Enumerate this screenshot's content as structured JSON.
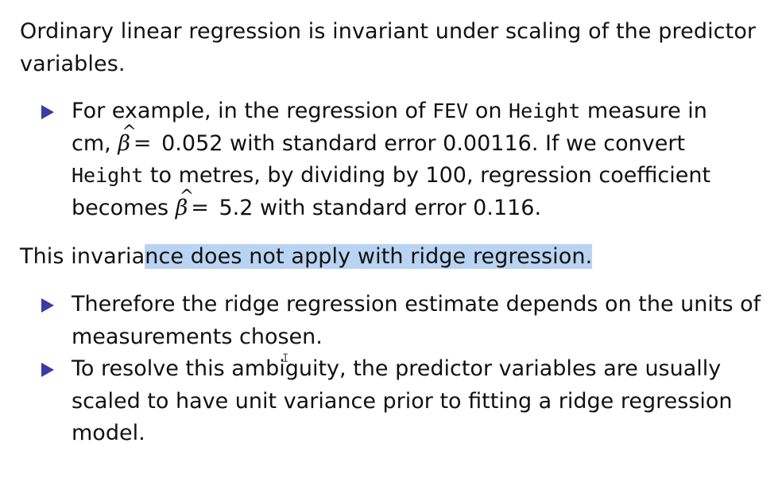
{
  "intro": {
    "line1": "Ordinary linear regression is invariant under scaling of the predictor",
    "line2": "variables."
  },
  "bullet1": {
    "l1_a": "For example, in the regression of ",
    "l1_code1": "FEV",
    "l1_b": " on ",
    "l1_code2": "Height",
    "l1_c": " measure in",
    "l2_a": "cm, ",
    "beta_symbol": "β",
    "hat_symbol": "^",
    "equals": "=",
    "l2_b": " 0.052 with standard error 0.00116.  If we convert",
    "l3_code": "Height",
    "l3_a": " to metres, by dividing by 100, regression coefficient",
    "l4_a": "becomes ",
    "l4_b": " 5.2 with standard error 0.116."
  },
  "statement": {
    "plain": "This invaria",
    "highlighted": "nce does not apply with ridge regression."
  },
  "bullet2": {
    "line1": "Therefore the ridge regression estimate depends on the units of",
    "line2": "measurements chosen."
  },
  "bullet3": {
    "line1": "To resolve this ambiguity, the predictor variables are usually",
    "line2": "scaled to have unit variance prior to fitting a ridge regression",
    "line3": "model."
  },
  "colors": {
    "bullet": "#3a3aa8",
    "highlight": "#b9d3f2",
    "text": "#111111"
  },
  "icons": {
    "bullet": "triangle-right-icon",
    "cursor": "text-cursor-icon"
  }
}
